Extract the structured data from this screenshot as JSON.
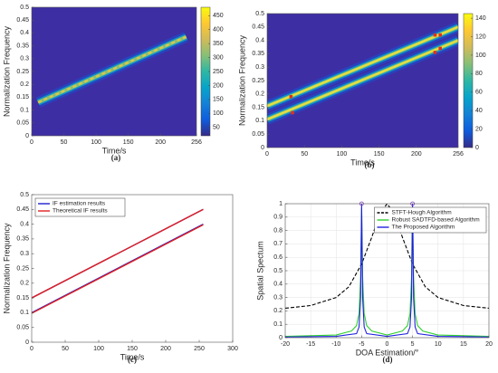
{
  "chart_data": [
    {
      "type": "heatmap",
      "caption": "(a)",
      "xlabel": "Time/s",
      "ylabel": "Normalization Frequency",
      "xlim": [
        0,
        256
      ],
      "xticks": [
        0,
        50,
        100,
        150,
        200,
        256
      ],
      "ylim": [
        0,
        0.5
      ],
      "yticks": [
        0,
        0.05,
        0.1,
        0.15,
        0.2,
        0.25,
        0.3,
        0.35,
        0.4,
        0.45,
        0.5
      ],
      "background": "#3e2ea3",
      "ridges": [
        {
          "x": [
            10,
            240
          ],
          "values": [
            0.13,
            0.385
          ],
          "color": "#d8c84a",
          "dashed": true
        }
      ],
      "clim": [
        20,
        480
      ],
      "cticks": [
        50,
        100,
        150,
        200,
        250,
        300,
        350,
        400,
        450
      ],
      "colormap": [
        "#352a87",
        "#0f5cdd",
        "#1481d6",
        "#06a4ca",
        "#2eb7a4",
        "#87bf77",
        "#d1bb59",
        "#fec832",
        "#f9fb0e"
      ]
    },
    {
      "type": "heatmap",
      "caption": "(b)",
      "xlabel": "Time/s",
      "ylabel": "Normalization Frequency",
      "xlim": [
        0,
        256
      ],
      "xticks": [
        0,
        50,
        100,
        150,
        200,
        256
      ],
      "ylim": [
        0,
        0.5
      ],
      "yticks": [
        0,
        0.05,
        0.1,
        0.15,
        0.2,
        0.25,
        0.3,
        0.35,
        0.4,
        0.45,
        0.5
      ],
      "background": "#3e2ea3",
      "ridges": [
        {
          "x": [
            0,
            256
          ],
          "values": [
            0.105,
            0.4
          ],
          "color": "#e6e040",
          "dashed": false
        },
        {
          "x": [
            0,
            256
          ],
          "values": [
            0.155,
            0.45
          ],
          "color": "#e6e040",
          "dashed": false
        }
      ],
      "markers": {
        "x": [
          32,
          34,
          225,
          232,
          225,
          232
        ],
        "values": [
          0.19,
          0.13,
          0.42,
          0.42,
          0.355,
          0.37
        ],
        "color": "#e0301e"
      },
      "clim": [
        0,
        145
      ],
      "cticks": [
        0,
        20,
        40,
        60,
        80,
        100,
        120,
        140
      ],
      "colormap": [
        "#352a87",
        "#0f5cdd",
        "#1481d6",
        "#06a4ca",
        "#2eb7a4",
        "#87bf77",
        "#d1bb59",
        "#fec832",
        "#f9fb0e"
      ]
    },
    {
      "type": "segments",
      "caption": "(c)",
      "xlabel": "Time/s",
      "ylabel": "Normalization Frequency",
      "xlim": [
        0,
        300
      ],
      "xticks": [
        0,
        50,
        100,
        150,
        200,
        250,
        300
      ],
      "ylim": [
        0,
        0.5
      ],
      "yticks": [
        0,
        0.05,
        0.1,
        0.15,
        0.2,
        0.25,
        0.3,
        0.35,
        0.4,
        0.45,
        0.5
      ],
      "grid": false,
      "legend": "upper left",
      "series": [
        {
          "name": "IF estimation results",
          "color": "#1f1fd0",
          "x": [
            0,
            256
          ],
          "segments": [
            [
              0.1,
              0.4
            ],
            [
              0.15,
              0.45
            ]
          ]
        },
        {
          "name": "Theoretical IF results",
          "color": "#e02020",
          "x": [
            0,
            256
          ],
          "segments": [
            [
              0.098,
              0.398
            ],
            [
              0.15,
              0.45
            ]
          ]
        }
      ]
    },
    {
      "type": "line",
      "caption": "(d)",
      "xlabel": "DOA Estimation/°",
      "ylabel": "Spatial Spectum",
      "xlim": [
        -20,
        20
      ],
      "xticks": [
        -20,
        -15,
        -10,
        -5,
        0,
        5,
        10,
        15,
        20
      ],
      "ylim": [
        0,
        1
      ],
      "yticks": [
        0,
        0.1,
        0.2,
        0.3,
        0.4,
        0.5,
        0.6,
        0.7,
        0.8,
        0.9,
        1
      ],
      "grid": true,
      "legend": "upper right",
      "series": [
        {
          "name": "STFT-Hough Algorithm",
          "color": "#000000",
          "linestyle": "dashed",
          "x": [
            -20,
            -15,
            -10,
            -7.5,
            -5,
            -3,
            -1.5,
            0,
            1.5,
            3,
            5,
            7.5,
            10,
            15,
            20
          ],
          "values": [
            0.22,
            0.24,
            0.3,
            0.38,
            0.55,
            0.75,
            0.92,
            1,
            0.92,
            0.75,
            0.55,
            0.38,
            0.3,
            0.24,
            0.22
          ]
        },
        {
          "name": "Robust SADTFD-based Algorithm",
          "color": "#30d030",
          "linestyle": "solid",
          "x": [
            -20,
            -10,
            -7,
            -6,
            -5.5,
            -5.2,
            -5,
            -4.8,
            -4.5,
            -4,
            -3,
            0,
            3,
            4,
            4.5,
            4.8,
            5,
            5.2,
            5.5,
            6,
            7,
            10,
            20
          ],
          "values": [
            0.01,
            0.02,
            0.05,
            0.09,
            0.18,
            0.45,
            0.97,
            0.45,
            0.18,
            0.09,
            0.05,
            0.02,
            0.05,
            0.09,
            0.18,
            0.45,
            0.97,
            0.45,
            0.18,
            0.09,
            0.05,
            0.02,
            0.01
          ]
        },
        {
          "name": "The Proposed Algorithm",
          "color": "#2020e0",
          "linestyle": "solid",
          "x": [
            -20,
            -10,
            -6,
            -5.5,
            -5.2,
            -5,
            -4.8,
            -4.5,
            -4,
            0,
            4,
            4.5,
            4.8,
            5,
            5.2,
            5.5,
            6,
            10,
            20
          ],
          "values": [
            0.005,
            0.01,
            0.03,
            0.08,
            0.3,
            1,
            0.3,
            0.08,
            0.03,
            0.01,
            0.03,
            0.08,
            0.3,
            1,
            0.3,
            0.08,
            0.03,
            0.01,
            0.005
          ]
        }
      ],
      "markers": {
        "x": [
          -5,
          5
        ],
        "values": [
          1,
          1
        ],
        "color": "#8040c0"
      }
    }
  ]
}
